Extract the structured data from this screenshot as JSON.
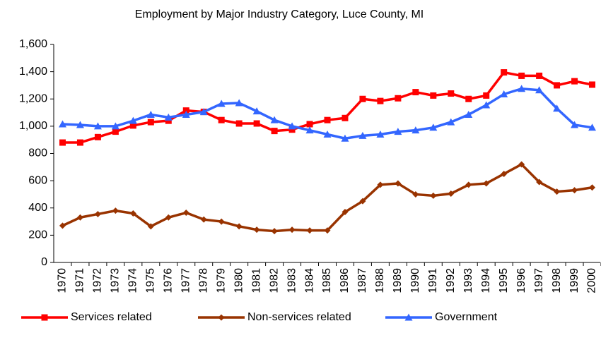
{
  "chart_data": {
    "type": "line",
    "title": "Employment by Major Industry Category, Luce County, MI",
    "categories": [
      "1970",
      "1971",
      "1972",
      "1973",
      "1974",
      "1975",
      "1976",
      "1977",
      "1978",
      "1979",
      "1980",
      "1981",
      "1982",
      "1983",
      "1984",
      "1985",
      "1986",
      "1987",
      "1988",
      "1989",
      "1990",
      "1991",
      "1992",
      "1993",
      "1994",
      "1995",
      "1996",
      "1997",
      "1998",
      "1999",
      "2000"
    ],
    "series": [
      {
        "name": "Services related",
        "color": "#ff0000",
        "marker": "square",
        "values": [
          880,
          880,
          920,
          960,
          1005,
          1030,
          1040,
          1115,
          1105,
          1045,
          1020,
          1020,
          965,
          975,
          1015,
          1045,
          1060,
          1200,
          1185,
          1205,
          1250,
          1225,
          1240,
          1200,
          1225,
          1395,
          1370,
          1370,
          1300,
          1330,
          1305
        ]
      },
      {
        "name": "Non-services related",
        "color": "#993300",
        "marker": "diamond",
        "values": [
          270,
          330,
          355,
          380,
          360,
          265,
          330,
          365,
          315,
          300,
          265,
          240,
          230,
          240,
          235,
          235,
          370,
          450,
          570,
          580,
          500,
          490,
          505,
          570,
          580,
          650,
          720,
          590,
          520,
          530,
          550
        ]
      },
      {
        "name": "Government",
        "color": "#3366ff",
        "marker": "triangle",
        "values": [
          1015,
          1010,
          1000,
          1000,
          1040,
          1085,
          1065,
          1085,
          1105,
          1165,
          1170,
          1110,
          1045,
          1000,
          970,
          940,
          910,
          930,
          940,
          960,
          970,
          990,
          1030,
          1085,
          1155,
          1235,
          1275,
          1265,
          1130,
          1010,
          990
        ]
      }
    ],
    "ylim": [
      0,
      1600
    ],
    "yticks": [
      0,
      200,
      400,
      600,
      800,
      {
        "value": 1000,
        "label": "1,000"
      },
      {
        "value": 1200,
        "label": "1,200"
      },
      {
        "value": 1400,
        "label": "1,400"
      },
      {
        "value": 1600,
        "label": "1,600"
      }
    ],
    "grid": false,
    "legend": "bottom"
  }
}
